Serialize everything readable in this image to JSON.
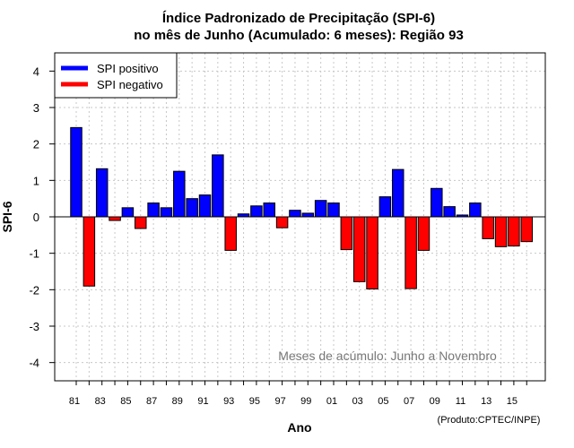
{
  "chart_data": {
    "type": "bar",
    "title": "Índice Padronizado de Precipitação (SPI-6)",
    "subtitle": "no mês de Junho (Acumulado: 6 meses): Região 93",
    "xlabel": "Ano",
    "ylabel": "SPI-6",
    "ylim": [
      -4.5,
      4.5
    ],
    "yticks": [
      -4,
      -3,
      -2,
      -1,
      0,
      1,
      2,
      3,
      4
    ],
    "grid": true,
    "x_tick_labels": [
      "81",
      "83",
      "85",
      "87",
      "89",
      "91",
      "93",
      "95",
      "97",
      "99",
      "01",
      "03",
      "05",
      "07",
      "09",
      "11",
      "13",
      "15"
    ],
    "categories": [
      "1981",
      "1982",
      "1983",
      "1984",
      "1985",
      "1986",
      "1987",
      "1988",
      "1989",
      "1990",
      "1991",
      "1992",
      "1993",
      "1994",
      "1995",
      "1996",
      "1997",
      "1998",
      "1999",
      "2000",
      "2001",
      "2002",
      "2003",
      "2004",
      "2005",
      "2006",
      "2007",
      "2008",
      "2009",
      "2010",
      "2011",
      "2012",
      "2013",
      "2014",
      "2015",
      "2016"
    ],
    "values": [
      2.45,
      -1.9,
      1.32,
      -0.1,
      0.25,
      -0.32,
      0.38,
      0.25,
      1.25,
      0.5,
      0.6,
      1.7,
      -0.92,
      0.08,
      0.3,
      0.38,
      -0.3,
      0.18,
      0.1,
      0.45,
      0.38,
      -0.9,
      -1.78,
      -1.98,
      0.55,
      1.3,
      -1.97,
      -0.92,
      0.78,
      0.28,
      0.05,
      0.38,
      -0.6,
      -0.82,
      -0.8,
      -0.68
    ],
    "legend": {
      "position": "top-left",
      "entries": [
        {
          "label": "SPI positivo",
          "color": "#0000ff"
        },
        {
          "label": "SPI negativo",
          "color": "#ff0000"
        }
      ]
    },
    "annotation": "Meses de acúmulo: Junho a Novembro",
    "credit": "(Produto:CPTEC/INPE)",
    "colors": {
      "positive": "#0000ff",
      "negative": "#ff0000"
    }
  }
}
